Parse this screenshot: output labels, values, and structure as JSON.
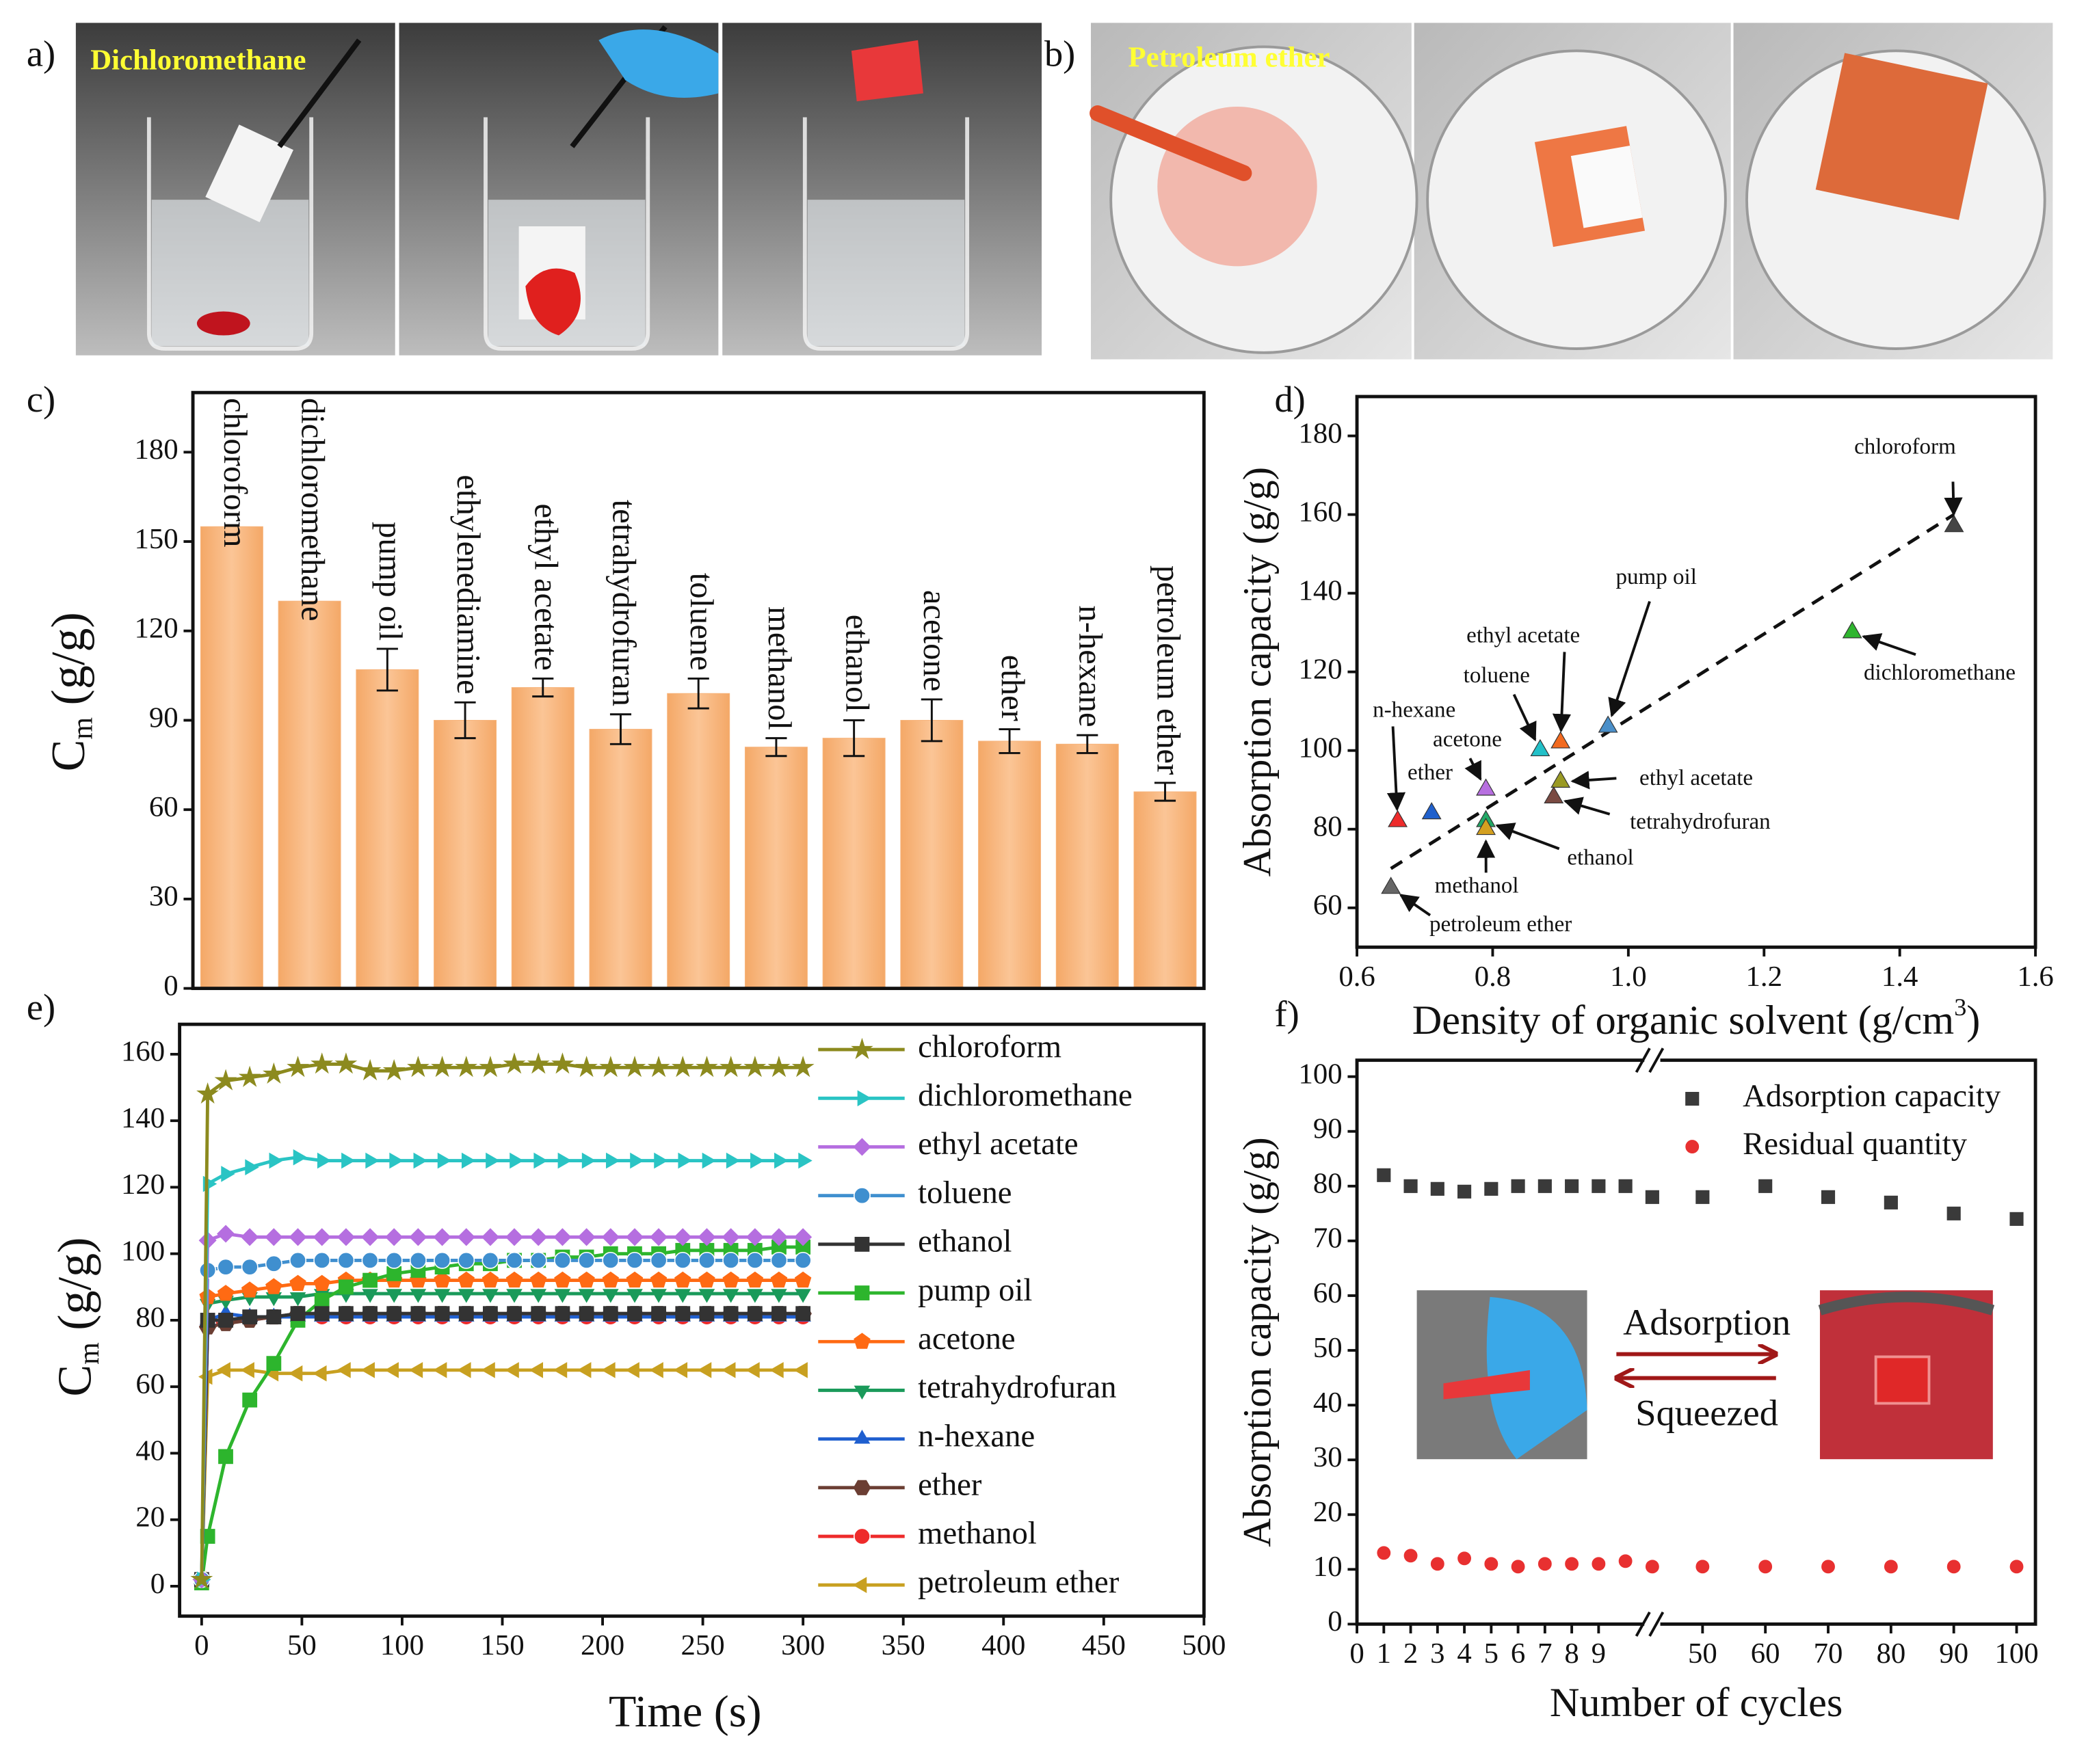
{
  "panels": {
    "a": {
      "label": "a)",
      "caption": "Dichloromethane"
    },
    "b": {
      "label": "b)",
      "caption": "Petroleum ether"
    }
  },
  "chart_data": [
    {
      "type": "bar",
      "label": "c)",
      "ylabel": [
        "C",
        "m",
        " (g/g)"
      ],
      "categories": [
        "chloroform",
        "dichloromethane",
        "pump oil",
        "ethylenediamine",
        "ethyl acetate",
        "tetrahydrofuran",
        "toluene",
        "methanol",
        "ethanol",
        "acetone",
        "ether",
        "n-hexane",
        "petroleum ether"
      ],
      "values": [
        155,
        130,
        107,
        90,
        101,
        87,
        99,
        81,
        84,
        90,
        83,
        82,
        66
      ],
      "errors": [
        null,
        null,
        7,
        6,
        3,
        5,
        5,
        3,
        6,
        7,
        4,
        3,
        3
      ],
      "color": "#f7b47c",
      "ylim": [
        0,
        200
      ],
      "yticks": [
        0,
        30,
        60,
        90,
        120,
        150,
        180
      ]
    },
    {
      "type": "scatter",
      "label": "d)",
      "xlabel": [
        "Density of organic solvent (g/cm",
        "3",
        ")"
      ],
      "ylabel": "Absorption capacity (g/g)",
      "points": [
        {
          "name": "chloroform",
          "x": 1.48,
          "y": 157,
          "color": "#454545"
        },
        {
          "name": "dichloromethane",
          "x": 1.33,
          "y": 130,
          "color": "#2fb52f"
        },
        {
          "name": "pump oil",
          "x": 0.97,
          "y": 106,
          "color": "#4a8fc9"
        },
        {
          "name": "ethyl acetate",
          "x": 0.9,
          "y": 102,
          "color": "#f26a1f"
        },
        {
          "name": "toluene",
          "x": 0.87,
          "y": 100,
          "color": "#22c0c8"
        },
        {
          "name": "ethyl acetate",
          "x": 0.9,
          "y": 92,
          "color": "#9a9a24"
        },
        {
          "name": "tetrahydrofuran",
          "x": 0.89,
          "y": 88,
          "color": "#7a4a42"
        },
        {
          "name": "acetone",
          "x": 0.79,
          "y": 90,
          "color": "#b76fe0"
        },
        {
          "name": "ethanol",
          "x": 0.79,
          "y": 82,
          "color": "#22a866"
        },
        {
          "name": "methanol",
          "x": 0.79,
          "y": 80,
          "color": "#d4a020"
        },
        {
          "name": "n-hexane",
          "x": 0.66,
          "y": 82,
          "color": "#ee2b2b"
        },
        {
          "name": "ether",
          "x": 0.71,
          "y": 84,
          "color": "#2060cc"
        },
        {
          "name": "petroleum ether",
          "x": 0.65,
          "y": 65,
          "color": "#666666"
        }
      ],
      "fit_line": {
        "x": [
          0.65,
          1.48
        ],
        "y": [
          70,
          160
        ]
      },
      "xlim": [
        0.6,
        1.6
      ],
      "xticks": [
        0.6,
        0.8,
        {
          "value": 1,
          "label": "1.0"
        },
        1.2,
        1.4,
        1.6
      ],
      "ylim": [
        50,
        190
      ],
      "yticks": [
        60,
        80,
        100,
        120,
        140,
        160,
        180
      ]
    },
    {
      "type": "line",
      "label": "e)",
      "xlabel": "Time (s)",
      "ylabel": [
        "C",
        "m",
        " (g/g)"
      ],
      "x": [
        0,
        3,
        12,
        24,
        36,
        48,
        60,
        72,
        84,
        96,
        108,
        120,
        132,
        144,
        156,
        168,
        180,
        192,
        204,
        216,
        228,
        240,
        252,
        264,
        276,
        288,
        300
      ],
      "series": [
        {
          "name": "chloroform",
          "color": "#8c8a1e",
          "marker": "star",
          "values": [
            2,
            148,
            152,
            153,
            154,
            156,
            157,
            157,
            155,
            155,
            156,
            156,
            156,
            156,
            157,
            157,
            157,
            156,
            156,
            156,
            156,
            156,
            156,
            156,
            156,
            156,
            156
          ]
        },
        {
          "name": "dichloromethane",
          "color": "#2ac4c4",
          "marker": "triangle-right",
          "values": [
            2,
            121,
            124,
            126,
            128,
            129,
            128,
            128,
            128,
            128,
            128,
            128,
            128,
            128,
            128,
            128,
            128,
            128,
            128,
            128,
            128,
            128,
            128,
            128,
            128,
            128,
            128
          ]
        },
        {
          "name": "ethyl acetate",
          "color": "#b56ee0",
          "marker": "diamond",
          "values": [
            2,
            104,
            106,
            105,
            105,
            105,
            105,
            105,
            105,
            105,
            105,
            105,
            105,
            105,
            105,
            105,
            105,
            105,
            105,
            105,
            105,
            105,
            105,
            105,
            105,
            105,
            105
          ]
        },
        {
          "name": "toluene",
          "color": "#3f8fcf",
          "marker": "circle",
          "values": [
            2,
            95,
            96,
            96,
            97,
            98,
            98,
            98,
            98,
            98,
            98,
            98,
            98,
            98,
            98,
            98,
            98,
            98,
            98,
            98,
            98,
            98,
            98,
            98,
            98,
            98,
            98
          ]
        },
        {
          "name": "ethanol",
          "color": "#333333",
          "marker": "square",
          "values": [
            2,
            80,
            80,
            81,
            81,
            82,
            82,
            82,
            82,
            82,
            82,
            82,
            82,
            82,
            82,
            82,
            82,
            82,
            82,
            82,
            82,
            82,
            82,
            82,
            82,
            82,
            82
          ]
        },
        {
          "name": "pump oil",
          "color": "#2db52d",
          "marker": "square",
          "values": [
            1,
            15,
            39,
            56,
            67,
            80,
            86,
            90,
            92,
            94,
            95,
            96,
            97,
            97,
            98,
            98,
            99,
            99,
            100,
            100,
            100,
            101,
            101,
            101,
            101,
            102,
            102
          ]
        },
        {
          "name": "acetone",
          "color": "#ff6a13",
          "marker": "pentagon",
          "values": [
            2,
            87,
            88,
            89,
            90,
            91,
            91,
            92,
            92,
            92,
            92,
            92,
            92,
            92,
            92,
            92,
            92,
            92,
            92,
            92,
            92,
            92,
            92,
            92,
            92,
            92,
            92
          ]
        },
        {
          "name": "tetrahydrofuran",
          "color": "#1a9a5a",
          "marker": "triangle-down",
          "values": [
            2,
            85,
            86,
            87,
            87,
            87,
            88,
            88,
            88,
            88,
            88,
            88,
            88,
            88,
            88,
            88,
            88,
            88,
            88,
            88,
            88,
            88,
            88,
            88,
            88,
            88,
            88
          ]
        },
        {
          "name": "n-hexane",
          "color": "#1f5fcf",
          "marker": "triangle-up",
          "values": [
            2,
            80,
            82,
            81,
            81,
            81,
            81,
            81,
            81,
            81,
            81,
            81,
            81,
            81,
            81,
            81,
            81,
            81,
            81,
            81,
            81,
            81,
            81,
            81,
            81,
            81,
            81
          ]
        },
        {
          "name": "ether",
          "color": "#6b3e33",
          "marker": "hexagon",
          "values": [
            2,
            78,
            79,
            80,
            81,
            82,
            82,
            82,
            82,
            82,
            82,
            82,
            82,
            82,
            82,
            82,
            82,
            82,
            82,
            82,
            82,
            82,
            82,
            82,
            82,
            82,
            82
          ]
        },
        {
          "name": "methanol",
          "color": "#ee2b2b",
          "marker": "circle",
          "values": [
            2,
            79,
            80,
            80,
            81,
            81,
            81,
            81,
            81,
            81,
            81,
            81,
            81,
            81,
            81,
            81,
            81,
            81,
            81,
            81,
            81,
            81,
            81,
            81,
            81,
            81,
            81
          ]
        },
        {
          "name": "petroleum ether",
          "color": "#c8a020",
          "marker": "triangle-left",
          "values": [
            2,
            63,
            65,
            65,
            64,
            64,
            64,
            65,
            65,
            65,
            65,
            65,
            65,
            65,
            65,
            65,
            65,
            65,
            65,
            65,
            65,
            65,
            65,
            65,
            65,
            65,
            65
          ]
        }
      ],
      "xlim": [
        -11,
        500
      ],
      "xticks": [
        0,
        50,
        100,
        150,
        200,
        250,
        300,
        350,
        400,
        450,
        500
      ],
      "ylim": [
        -9,
        169
      ],
      "yticks": [
        0,
        20,
        40,
        60,
        80,
        100,
        120,
        140,
        160
      ]
    },
    {
      "type": "scatter",
      "label": "f)",
      "xlabel": "Number of cycles",
      "ylabel": "Absorption capacity (g/g)",
      "series": [
        {
          "name": "Adsorption capacity",
          "color": "#3a3a3a",
          "marker": "square",
          "x": [
            1,
            2,
            3,
            4,
            5,
            6,
            7,
            8,
            9,
            10,
            11,
            50,
            60,
            70,
            80,
            90,
            100
          ],
          "values": [
            82,
            80,
            79.5,
            79,
            79.5,
            80,
            80,
            80,
            80,
            80,
            78,
            78,
            80,
            78,
            77,
            75,
            74
          ]
        },
        {
          "name": "Residual quantity",
          "color": "#e83030",
          "marker": "circle",
          "x": [
            1,
            2,
            3,
            4,
            5,
            6,
            7,
            8,
            9,
            10,
            11,
            50,
            60,
            70,
            80,
            90,
            100
          ],
          "values": [
            13,
            12.5,
            11,
            12,
            11,
            10.5,
            11,
            11,
            11,
            11.5,
            10.5,
            10.5,
            10.5,
            10.5,
            10.5,
            10.5,
            10.5
          ]
        }
      ],
      "xlim": [
        0,
        103
      ],
      "xbreak": [
        11,
        42
      ],
      "xticks": [
        0,
        1,
        2,
        3,
        4,
        5,
        6,
        7,
        8,
        9,
        50,
        60,
        70,
        80,
        90,
        100
      ],
      "ylim": [
        0,
        103
      ],
      "yticks": [
        0,
        10,
        20,
        30,
        40,
        50,
        60,
        70,
        80,
        90,
        100
      ],
      "annotations": [
        "Adsorption",
        "Squeezed"
      ]
    }
  ]
}
